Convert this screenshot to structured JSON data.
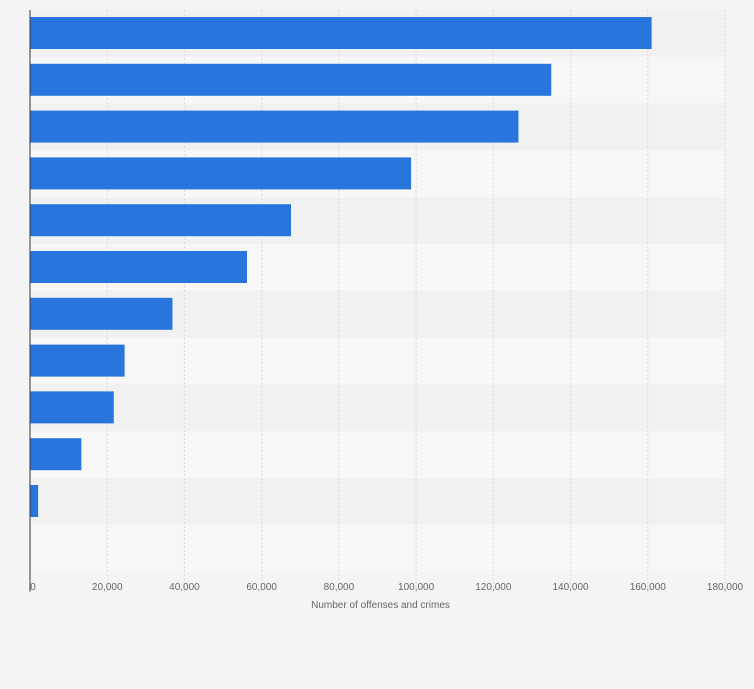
{
  "chart_data": {
    "type": "bar",
    "orientation": "horizontal",
    "categories": [
      "",
      "",
      "",
      "",
      "",
      "",
      "",
      "",
      "",
      "",
      ""
    ],
    "values": [
      161000,
      135000,
      126500,
      98700,
      67600,
      56200,
      36900,
      24500,
      21700,
      13300,
      2100
    ],
    "title": "",
    "xlabel": "Number of offenses and crimes",
    "ylabel": "",
    "xlim": [
      0,
      180000
    ],
    "xticks": [
      0,
      20000,
      40000,
      60000,
      80000,
      100000,
      120000,
      140000,
      160000,
      180000
    ],
    "xtick_labels": [
      "0",
      "20,000",
      "40,000",
      "60,000",
      "80,000",
      "100,000",
      "120,000",
      "140,000",
      "160,000",
      "180,000"
    ],
    "grid": true,
    "legend": "none"
  },
  "colors": {
    "bar": "#2876dd",
    "background": "#f4f4f4",
    "band_light": "#f7f7f7",
    "band_dark": "#f1f1f1",
    "grid": "#dcdcdc",
    "axis": "#333333",
    "text": "#666666"
  }
}
